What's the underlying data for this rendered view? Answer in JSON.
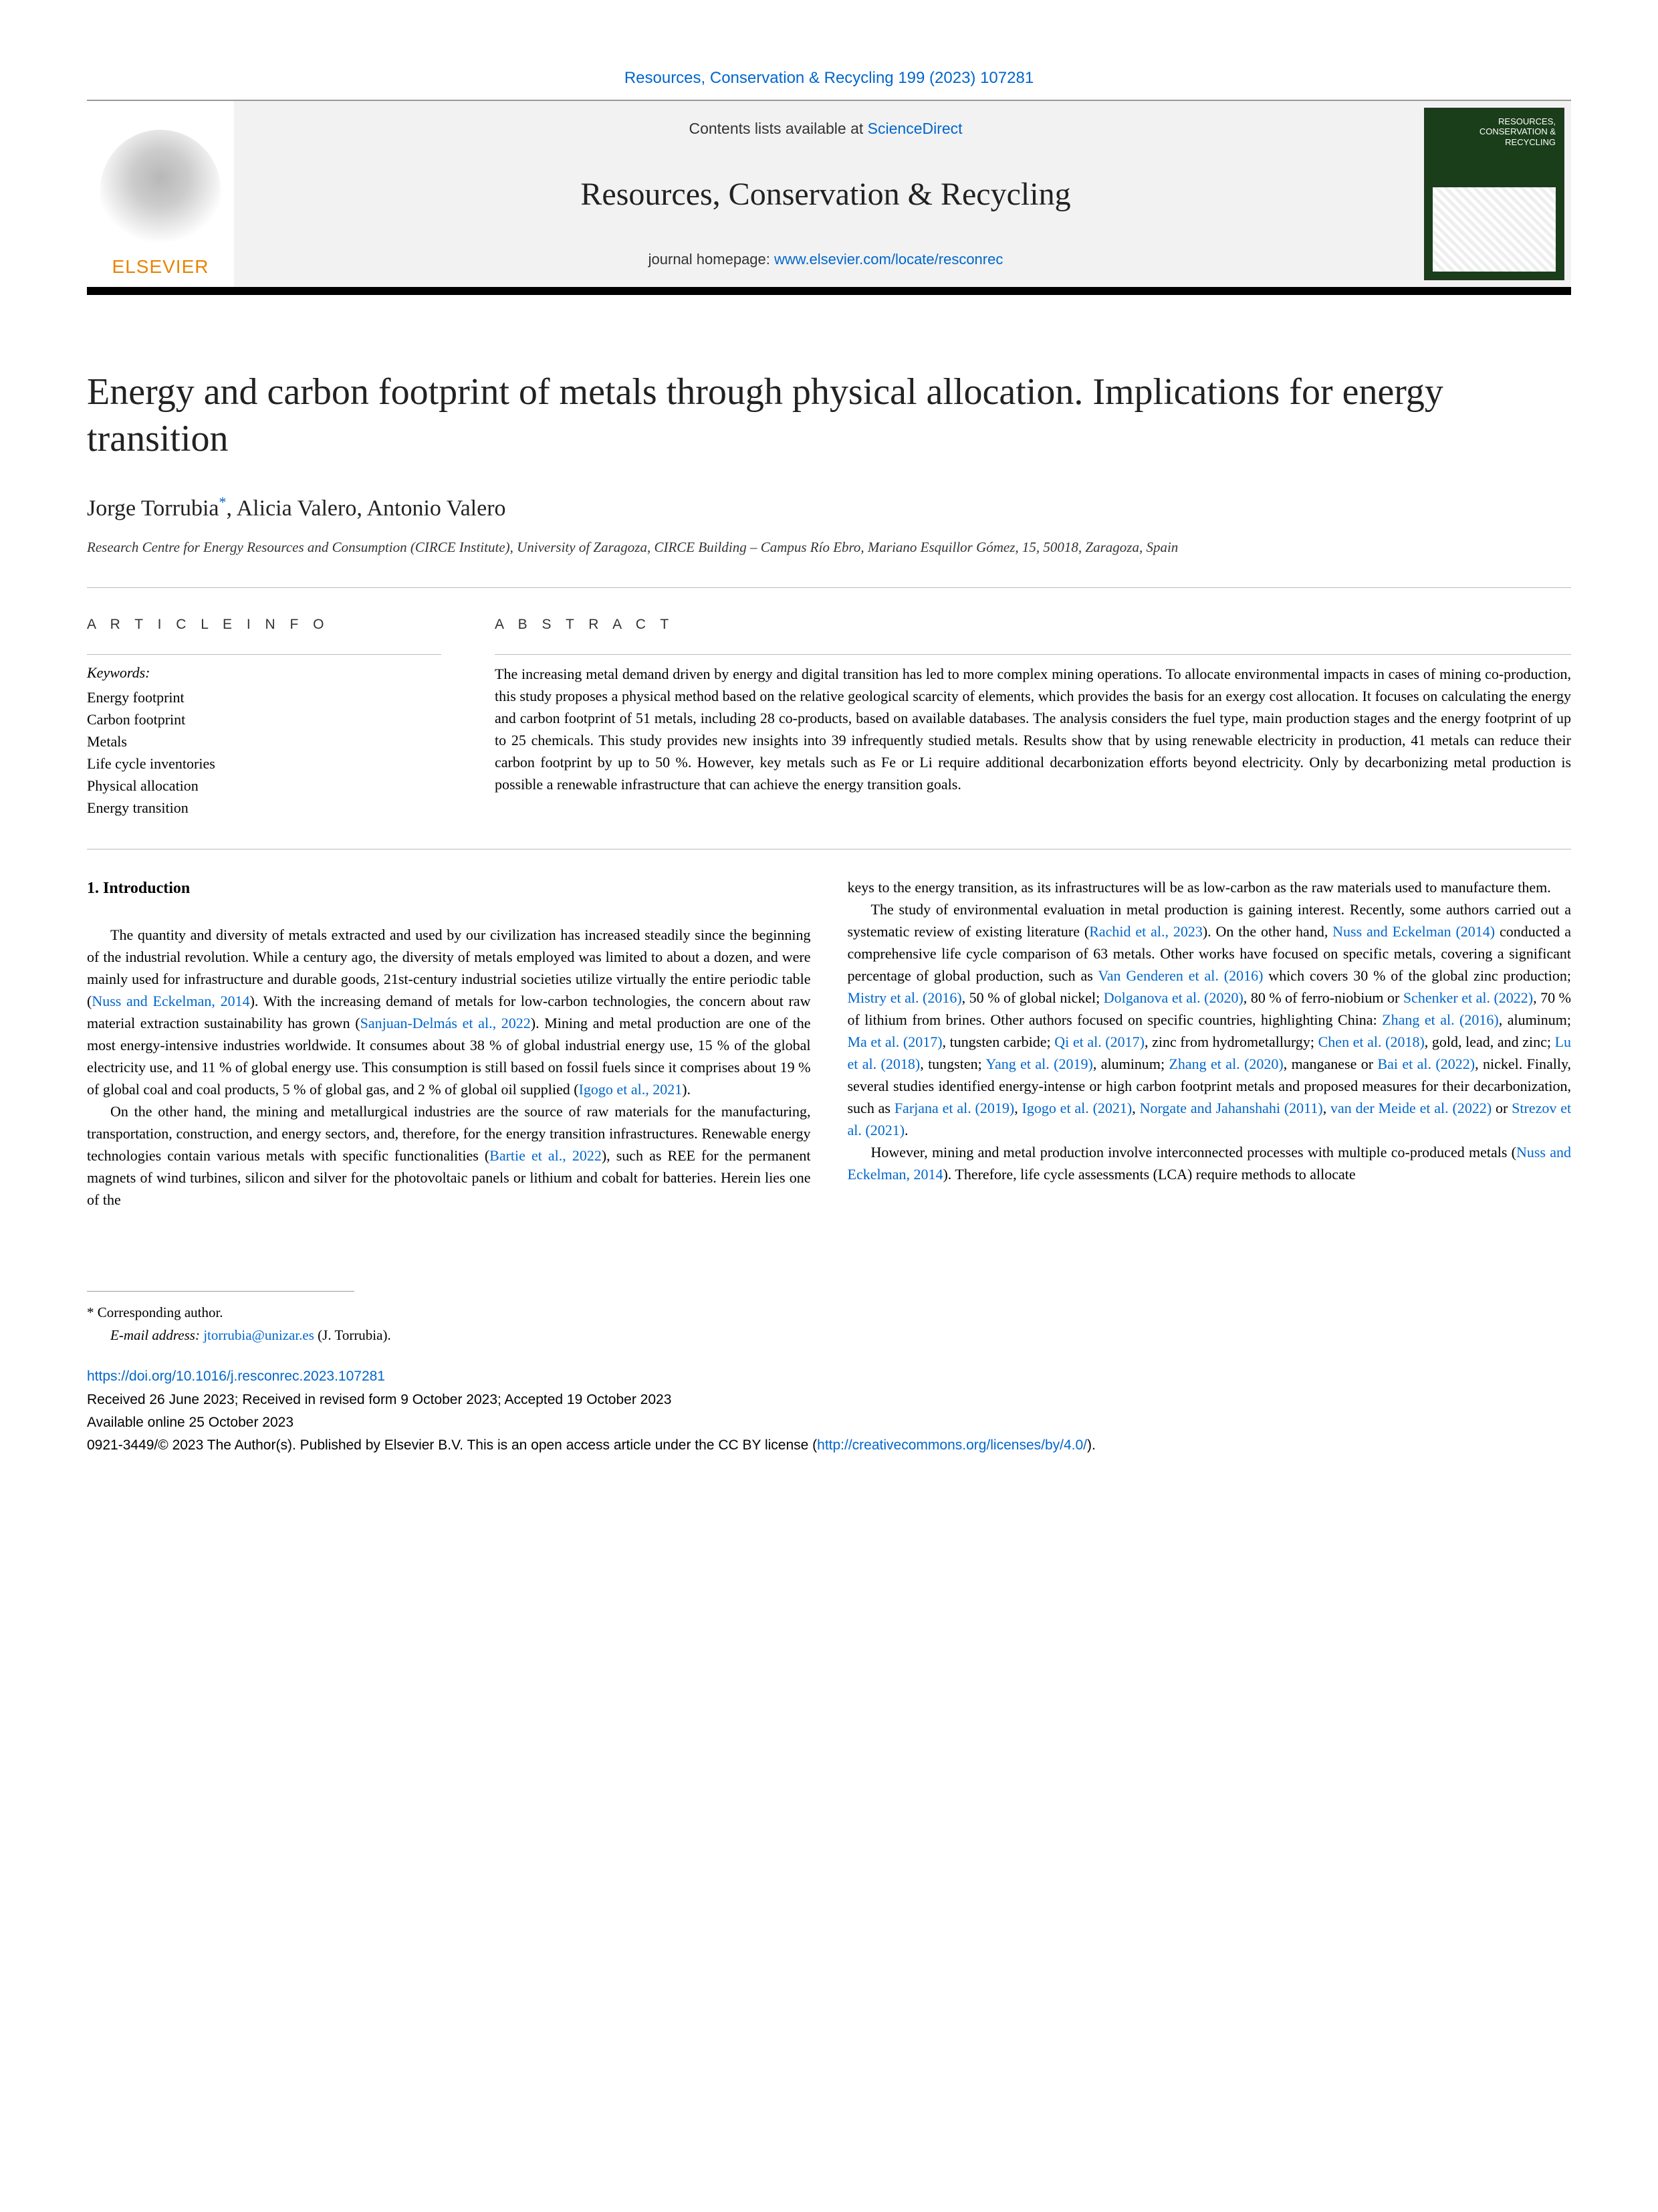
{
  "citation": {
    "journal": "Resources, Conservation & Recycling",
    "volume_issue": "199 (2023) 107281"
  },
  "header": {
    "contents_prefix": "Contents lists available at ",
    "contents_link": "ScienceDirect",
    "journal_name": "Resources, Conservation & Recycling",
    "homepage_prefix": "journal homepage: ",
    "homepage_url": "www.elsevier.com/locate/resconrec",
    "elsevier": "ELSEVIER",
    "cover_title": "RESOURCES, CONSERVATION & RECYCLING"
  },
  "title": "Energy and carbon footprint of metals through physical allocation. Implications for energy transition",
  "authors": {
    "a1": "Jorge Torrubia",
    "a1_mark": "*",
    "sep1": ", ",
    "a2": "Alicia Valero",
    "sep2": ", ",
    "a3": "Antonio Valero"
  },
  "affiliation": "Research Centre for Energy Resources and Consumption (CIRCE Institute), University of Zaragoza, CIRCE Building – Campus Río Ebro, Mariano Esquillor Gómez, 15, 50018, Zaragoza, Spain",
  "article_info": {
    "heading": "A R T I C L E  I N F O",
    "keywords_label": "Keywords:",
    "keywords": [
      "Energy footprint",
      "Carbon footprint",
      "Metals",
      "Life cycle inventories",
      "Physical allocation",
      "Energy transition"
    ]
  },
  "abstract": {
    "heading": "A B S T R A C T",
    "text": "The increasing metal demand driven by energy and digital transition has led to more complex mining operations. To allocate environmental impacts in cases of mining co-production, this study proposes a physical method based on the relative geological scarcity of elements, which provides the basis for an exergy cost allocation. It focuses on calculating the energy and carbon footprint of 51 metals, including 28 co-products, based on available databases. The analysis considers the fuel type, main production stages and the energy footprint of up to 25 chemicals. This study provides new insights into 39 infrequently studied metals. Results show that by using renewable electricity in production, 41 metals can reduce their carbon footprint by up to 50 %. However, key metals such as Fe or Li require additional decarbonization efforts beyond electricity. Only by decarbonizing metal production is possible a renewable infrastructure that can achieve the energy transition goals."
  },
  "section1_heading": "1.  Introduction",
  "body": {
    "p1a": "The quantity and diversity of metals extracted and used by our civilization has increased steadily since the beginning of the industrial revolution. While a century ago, the diversity of metals employed was limited to about a dozen, and were mainly used for infrastructure and durable goods, 21st-century industrial societies utilize virtually the entire periodic table (",
    "r1": "Nuss and Eckelman, 2014",
    "p1b": "). With the increasing demand of metals for low-carbon technologies, the concern about raw material extraction sustainability has grown (",
    "r2": "Sanjuan-Delmás et al., 2022",
    "p1c": "). Mining and metal production are one of the most energy-intensive industries worldwide. It consumes about 38 % of global industrial energy use, 15 % of the global electricity use, and 11 % of global energy use. This consumption is still based on fossil fuels since it comprises about 19 % of global coal and coal products, 5 % of global gas, and 2 % of global oil supplied (",
    "r3": "Igogo et al., 2021",
    "p1d": ").",
    "p2a": "On the other hand, the mining and metallurgical industries are the source of raw materials for the manufacturing, transportation, construction, and energy sectors, and, therefore, for the energy transition infrastructures. Renewable energy technologies contain various metals with specific functionalities (",
    "r4": "Bartie et al., 2022",
    "p2b": "), such as REE for the permanent magnets of wind turbines, silicon and silver for the photovoltaic panels or lithium and cobalt for batteries. Herein lies one of the ",
    "p2c": "keys to the energy transition, as its infrastructures will be as low-carbon as the raw materials used to manufacture them.",
    "p3a": "The study of environmental evaluation in metal production is gaining interest. Recently, some authors carried out a systematic review of existing literature (",
    "r5": "Rachid et al., 2023",
    "p3b": "). On the other hand, ",
    "r6": "Nuss and Eckelman (2014)",
    "p3c": " conducted a comprehensive life cycle comparison of 63 metals. Other works have focused on specific metals, covering a significant percentage of global production, such as ",
    "r7": "Van Genderen et al. (2016)",
    "p3d": " which covers 30 % of the global zinc production; ",
    "r8": "Mistry et al. (2016)",
    "p3e": ", 50 % of global nickel; ",
    "r9": "Dolganova et al. (2020)",
    "p3f": ", 80 % of ferro-niobium or ",
    "r10": "Schenker et al. (2022)",
    "p3g": ", 70 % of lithium from brines. Other authors focused on specific countries, highlighting China: ",
    "r11": "Zhang et al. (2016)",
    "p3h": ", aluminum; ",
    "r12": "Ma et al. (2017)",
    "p3i": ", tungsten carbide; ",
    "r13": "Qi et al. (2017)",
    "p3j": ", zinc from hydrometallurgy; ",
    "r14": "Chen et al. (2018)",
    "p3k": ", gold, lead, and zinc; ",
    "r15": "Lu et al. (2018)",
    "p3l": ", tungsten; ",
    "r16": "Yang et al. (2019)",
    "p3m": ", aluminum; ",
    "r17": "Zhang et al. (2020)",
    "p3n": ", manganese or ",
    "r18": "Bai et al. (2022)",
    "p3o": ", nickel. Finally, several studies identified energy-intense or high carbon footprint metals and proposed measures for their decarbonization, such as ",
    "r19": "Farjana et al. (2019)",
    "p3p": ", ",
    "r20": "Igogo et al. (2021)",
    "p3q": ", ",
    "r21": "Norgate and Jahanshahi (2011)",
    "p3r": ", ",
    "r22": "van der Meide et al. (2022)",
    "p3s": " or ",
    "r23": "Strezov et al. (2021)",
    "p3t": ".",
    "p4a": "However, mining and metal production involve interconnected processes with multiple co-produced metals (",
    "r24": "Nuss and Eckelman, 2014",
    "p4b": "). Therefore, life cycle assessments (LCA) require methods to allocate"
  },
  "footer": {
    "corresponding": "* Corresponding author.",
    "email_label": "E-mail address: ",
    "email": "jtorrubia@unizar.es",
    "email_name": " (J. Torrubia).",
    "doi": "https://doi.org/10.1016/j.resconrec.2023.107281",
    "dates": "Received 26 June 2023; Received in revised form 9 October 2023; Accepted 19 October 2023",
    "online": "Available online 25 October 2023",
    "copyright_a": "0921-3449/© 2023 The Author(s). Published by Elsevier B.V. This is an open access article under the CC BY license (",
    "copyright_link": "http://creativecommons.org/licenses/by/4.0/",
    "copyright_b": ")."
  },
  "colors": {
    "link": "#0066cc",
    "elsevier_orange": "#e98300",
    "cover_green": "#1a3d1a"
  }
}
